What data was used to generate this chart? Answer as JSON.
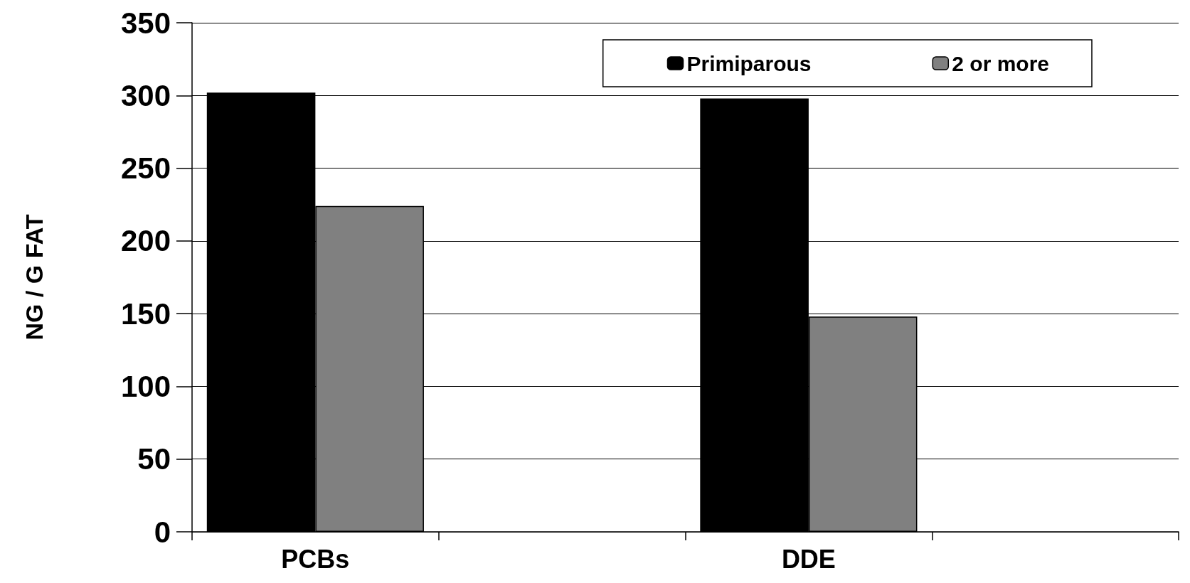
{
  "chart_data": {
    "type": "bar",
    "ylabel": "NG / G FAT",
    "categories": [
      "PCBs",
      null,
      "DDE",
      null
    ],
    "series": [
      {
        "name": "Primiparous",
        "color": "#000000",
        "values": [
          302,
          null,
          298,
          null
        ]
      },
      {
        "name": "2 or more",
        "color": "#808080",
        "values": [
          224,
          null,
          148,
          null
        ]
      }
    ],
    "ylim": [
      0,
      350
    ],
    "yticks": [
      0,
      50,
      100,
      150,
      200,
      250,
      300,
      350
    ],
    "grid": "y",
    "legend": "top right"
  }
}
